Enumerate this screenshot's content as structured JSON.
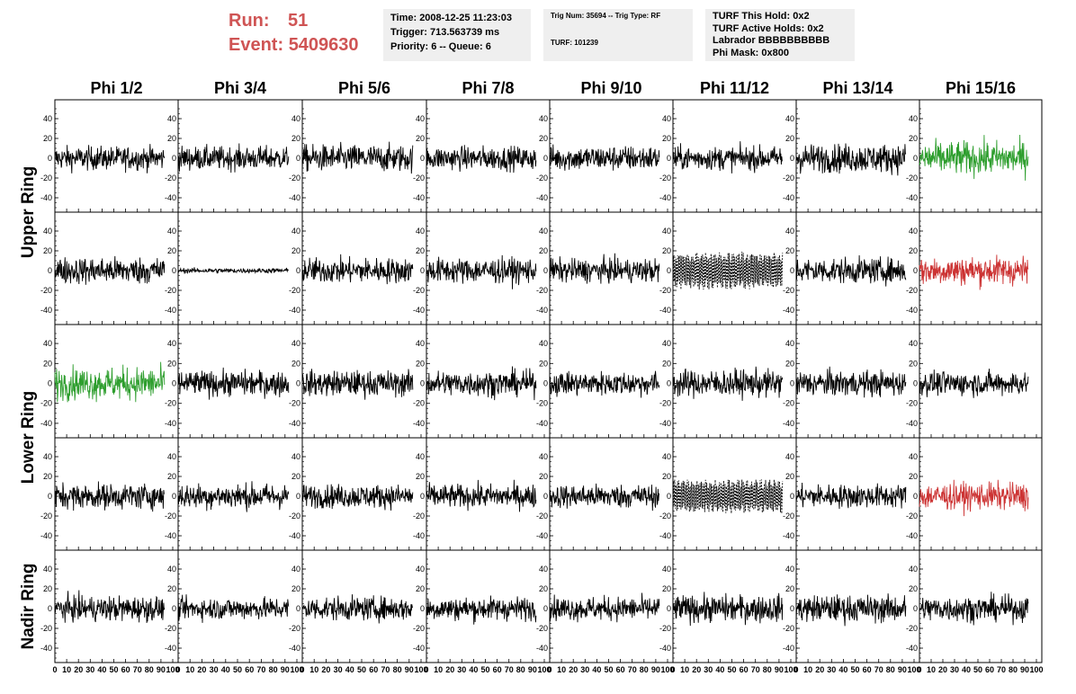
{
  "header": {
    "run_label": "Run:",
    "run_value": "51",
    "event_label": "Event:",
    "event_value": "5409630",
    "time": "Time: 2008-12-25 11:23:03",
    "trigger": "Trigger: 713.563739 ms",
    "priority": "Priority: 6 -- Queue: 6",
    "trig_num": "Trig Num: 35694 -- Trig Type: RF",
    "turf": "TURF: 101239",
    "turf_this_hold": "TURF This Hold: 0x2",
    "turf_active_holds": "TURF Active Holds: 0x2",
    "labrador": "Labrador BBBBBBBBBB",
    "phi_mask": "Phi Mask: 0x800"
  },
  "chart_data": {
    "type": "line",
    "columns": [
      "Phi 1/2",
      "Phi 3/4",
      "Phi 5/6",
      "Phi 7/8",
      "Phi 9/10",
      "Phi 11/12",
      "Phi 13/14",
      "Phi 15/16"
    ],
    "ring_labels": [
      "Upper Ring",
      "Lower Ring",
      "Nadir Ring"
    ],
    "xlim": [
      0,
      100
    ],
    "ylim": [
      -50,
      50
    ],
    "x_ticks": [
      0,
      10,
      20,
      30,
      40,
      50,
      60,
      70,
      80,
      90,
      100
    ],
    "x_tick_labels": [
      "0",
      "10",
      "20",
      "30",
      "40",
      "50",
      "60",
      "70",
      "80",
      "90",
      "100"
    ],
    "y_ticks": [
      -40,
      -20,
      0,
      20,
      40
    ],
    "y_tick_labels": [
      "-40",
      "-20",
      "0",
      "20",
      "40"
    ],
    "colors": {
      "normal": "#000000",
      "green": "#2e9e2e",
      "red": "#cc3333",
      "dashed": "#000000"
    },
    "panels": [
      [
        {
          "style": "normal",
          "amp": 14
        },
        {
          "style": "normal",
          "amp": 14
        },
        {
          "style": "normal",
          "amp": 16
        },
        {
          "style": "normal",
          "amp": 14
        },
        {
          "style": "normal",
          "amp": 15
        },
        {
          "style": "normal",
          "amp": 14
        },
        {
          "style": "normal",
          "amp": 17
        },
        {
          "style": "green",
          "amp": 20
        }
      ],
      [
        {
          "style": "normal",
          "amp": 16
        },
        {
          "style": "normal",
          "amp": 3
        },
        {
          "style": "normal",
          "amp": 15
        },
        {
          "style": "normal",
          "amp": 15
        },
        {
          "style": "normal",
          "amp": 14
        },
        {
          "style": "dashed",
          "amp": 20
        },
        {
          "style": "normal",
          "amp": 15
        },
        {
          "style": "red",
          "amp": 17
        }
      ],
      [
        {
          "style": "green",
          "amp": 19
        },
        {
          "style": "normal",
          "amp": 15
        },
        {
          "style": "normal",
          "amp": 15
        },
        {
          "style": "normal",
          "amp": 15
        },
        {
          "style": "normal",
          "amp": 14
        },
        {
          "style": "normal",
          "amp": 16
        },
        {
          "style": "normal",
          "amp": 15
        },
        {
          "style": "normal",
          "amp": 14
        }
      ],
      [
        {
          "style": "normal",
          "amp": 15
        },
        {
          "style": "normal",
          "amp": 15
        },
        {
          "style": "normal",
          "amp": 14
        },
        {
          "style": "normal",
          "amp": 14
        },
        {
          "style": "normal",
          "amp": 14
        },
        {
          "style": "dashed",
          "amp": 18
        },
        {
          "style": "normal",
          "amp": 14
        },
        {
          "style": "red",
          "amp": 16
        }
      ],
      [
        {
          "style": "normal",
          "amp": 15
        },
        {
          "style": "normal",
          "amp": 13
        },
        {
          "style": "normal",
          "amp": 14
        },
        {
          "style": "normal",
          "amp": 14
        },
        {
          "style": "normal",
          "amp": 14
        },
        {
          "style": "normal",
          "amp": 16
        },
        {
          "style": "normal",
          "amp": 16
        },
        {
          "style": "normal",
          "amp": 15
        }
      ]
    ]
  }
}
